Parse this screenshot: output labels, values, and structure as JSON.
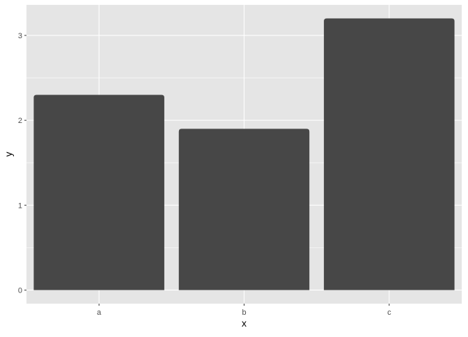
{
  "chart_data": {
    "type": "bar",
    "categories": [
      "a",
      "b",
      "c"
    ],
    "values": [
      2.3,
      1.9,
      3.2
    ],
    "title": "",
    "xlabel": "x",
    "ylabel": "y",
    "ylim": [
      -0.16,
      3.36
    ],
    "yticks": [
      "0",
      "1",
      "2",
      "3"
    ],
    "grid": true,
    "colors": {
      "bar": "#474747",
      "panel": "#e5e5e5",
      "grid": "#ffffff"
    }
  }
}
